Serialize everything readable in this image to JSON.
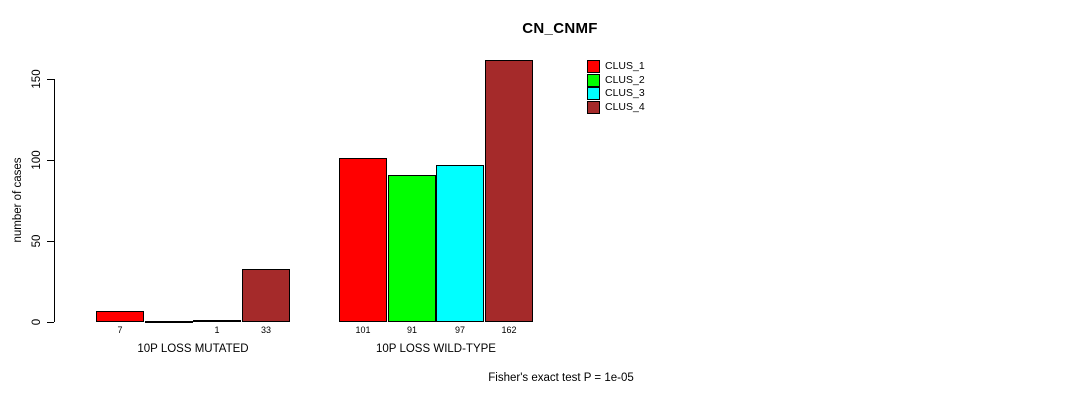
{
  "title": "CN_CNMF",
  "footer": "Fisher's exact test P = 1e-05",
  "y_axis": {
    "label": "number of cases",
    "ticks": [
      0,
      50,
      100,
      150
    ]
  },
  "legend": [
    {
      "label": "CLUS_1",
      "color": "#ff0000"
    },
    {
      "label": "CLUS_2",
      "color": "#00ff00"
    },
    {
      "label": "CLUS_3",
      "color": "#00ffff"
    },
    {
      "label": "CLUS_4",
      "color": "#a52a2a"
    }
  ],
  "chart_data": {
    "type": "bar",
    "title": "CN_CNMF",
    "xlabel": "",
    "ylabel": "number of cases",
    "ylim": [
      0,
      162
    ],
    "axis_tick_max": 150,
    "grid": false,
    "legend_position": "top-right-inside",
    "categories": [
      "10P LOSS MUTATED",
      "10P LOSS WILD-TYPE"
    ],
    "series": [
      {
        "name": "CLUS_1",
        "color": "#ff0000",
        "values": [
          7,
          101
        ]
      },
      {
        "name": "CLUS_2",
        "color": "#00ff00",
        "values": [
          0,
          91
        ]
      },
      {
        "name": "CLUS_3",
        "color": "#00ffff",
        "values": [
          1,
          97
        ]
      },
      {
        "name": "CLUS_4",
        "color": "#a52a2a",
        "values": [
          33,
          162
        ]
      }
    ],
    "bar_labels": [
      [
        "7",
        "",
        "1",
        "33"
      ],
      [
        "101",
        "91",
        "97",
        "162"
      ]
    ],
    "annotation": "Fisher's exact test P = 1e-05"
  }
}
